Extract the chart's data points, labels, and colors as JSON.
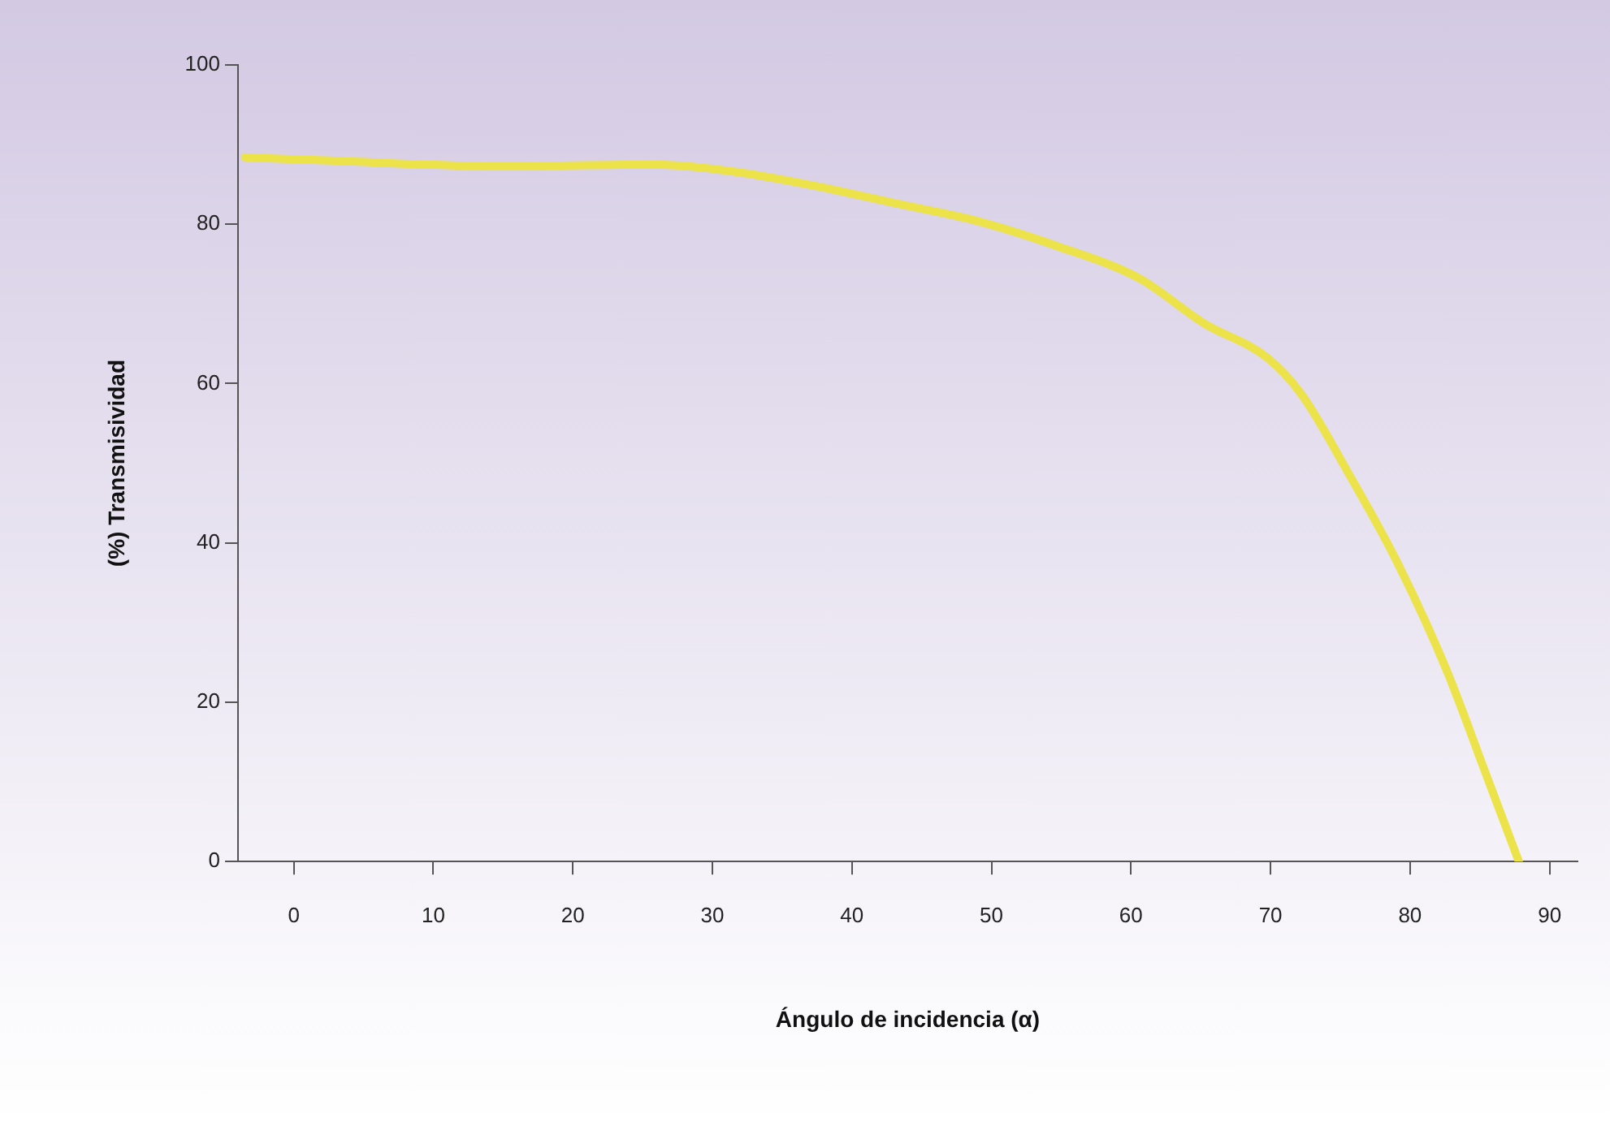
{
  "chart_data": {
    "type": "line",
    "xlabel": "Ángulo de incidencia (α)",
    "ylabel": "(%) Transmisividad",
    "x": [
      -3.5,
      2.6,
      14.2,
      25.8,
      31.6,
      37.4,
      43.2,
      49,
      54.8,
      60.6,
      65.2,
      69.8,
      72.2,
      75.6,
      79.1,
      82.6,
      85.5,
      87.8
    ],
    "series": [
      {
        "color": "#ece24a",
        "values": [
          88.4,
          88,
          87.3,
          87.5,
          86.6,
          84.8,
          82.6,
          80.4,
          77.2,
          73.2,
          67.6,
          63.2,
          58.7,
          48.7,
          37.5,
          24.1,
          10.7,
          0
        ]
      }
    ],
    "xlim": [
      -4,
      92
    ],
    "xticks": [
      0,
      10,
      20,
      30,
      40,
      50,
      60,
      70,
      80,
      90
    ],
    "ylim": [
      0,
      100
    ],
    "yticks": [
      0,
      20,
      40,
      60,
      80,
      100
    ],
    "grid": false,
    "legend": false,
    "marker": "none",
    "line_style": "solid"
  }
}
